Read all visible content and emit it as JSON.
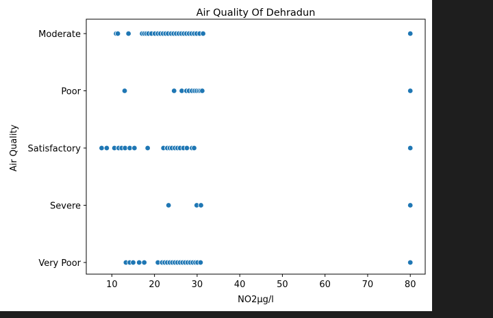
{
  "chart_data": {
    "type": "scatter",
    "title": "Air Quality Of Dehradun",
    "xlabel": "NO2µg/l",
    "ylabel": "Air Quality",
    "xlim": [
      4,
      83.5
    ],
    "xticks": [
      10,
      20,
      30,
      40,
      50,
      60,
      70,
      80
    ],
    "categories": [
      "Moderate",
      "Poor",
      "Satisfactory",
      "Severe",
      "Very Poor"
    ],
    "point_color": "#1f77b4",
    "grid": false,
    "points": [
      {
        "category": "Moderate",
        "x": [
          11.0,
          11.4,
          13.9,
          17.1,
          17.6,
          18.1,
          18.6,
          19.3,
          20.1,
          20.8,
          21.4,
          22.0,
          22.6,
          23.2,
          23.9,
          24.5,
          25.1,
          25.7,
          26.3,
          26.9,
          27.5,
          28.1,
          28.7,
          29.3,
          29.9,
          30.6,
          31.4,
          80.0
        ]
      },
      {
        "category": "Poor",
        "x": [
          13.0,
          24.6,
          26.4,
          27.5,
          28.1,
          28.8,
          29.4,
          29.9,
          30.4,
          30.8,
          31.2,
          80.0
        ]
      },
      {
        "category": "Satisfactory",
        "x": [
          7.6,
          8.8,
          10.6,
          11.6,
          12.3,
          13.1,
          14.2,
          15.3,
          18.4,
          22.1,
          23.0,
          23.6,
          24.1,
          24.8,
          25.4,
          26.0,
          26.8,
          27.6,
          28.8,
          29.3,
          80.0
        ]
      },
      {
        "category": "Severe",
        "x": [
          23.3,
          29.9,
          30.9,
          80.0
        ]
      },
      {
        "category": "Very Poor",
        "x": [
          13.3,
          14.2,
          15.0,
          16.4,
          17.6,
          20.8,
          21.8,
          22.4,
          23.0,
          23.6,
          24.2,
          24.8,
          25.4,
          26.0,
          26.6,
          27.2,
          27.8,
          28.4,
          29.0,
          29.6,
          30.1,
          30.8,
          80.0
        ]
      }
    ]
  }
}
